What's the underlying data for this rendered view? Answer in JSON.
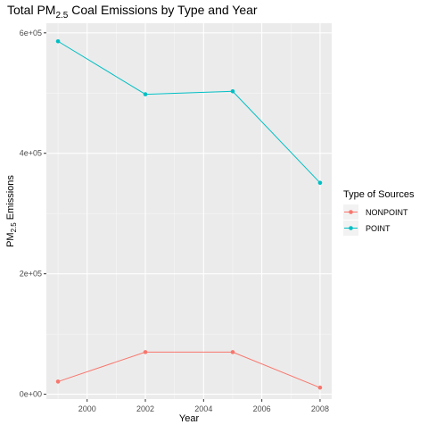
{
  "chart_data": {
    "type": "line",
    "title": {
      "prefix": "Total  PM",
      "subscript": "2.5",
      "suffix": "  Coal Emissions by Type and Year"
    },
    "xlabel": "Year",
    "ylabel": {
      "prefix": "PM",
      "subscript": "2.5",
      "suffix": " Emissions"
    },
    "xlim": [
      1998.6,
      2008.4
    ],
    "ylim": [
      -8000,
      616000
    ],
    "x_ticks": [
      2000,
      2002,
      2004,
      2006,
      2008
    ],
    "x_tick_labels": [
      "2000",
      "2002",
      "2004",
      "2006",
      "2008"
    ],
    "y_ticks": [
      0,
      200000,
      400000,
      600000
    ],
    "y_tick_labels": [
      "0e+00",
      "2e+05",
      "4e+05",
      "6e+05"
    ],
    "grid": true,
    "legend": {
      "title": "Type of Sources",
      "placement": "right"
    },
    "series": [
      {
        "name": "NONPOINT",
        "color": "#F8766D",
        "x": [
          1999,
          2002,
          2005,
          2008
        ],
        "values": [
          21000,
          70000,
          70000,
          11000
        ]
      },
      {
        "name": "POINT",
        "color": "#00BFC4",
        "x": [
          1999,
          2002,
          2005,
          2008
        ],
        "values": [
          586000,
          498000,
          503000,
          351000
        ]
      }
    ]
  }
}
